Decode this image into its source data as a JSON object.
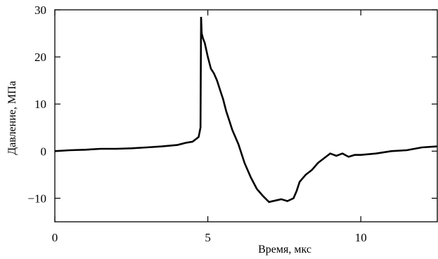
{
  "chart_data": {
    "type": "line",
    "title": "",
    "xlabel": "Время, мкс",
    "ylabel": "Давление, МПа",
    "xlim": [
      0,
      12.5
    ],
    "ylim": [
      -15,
      30
    ],
    "xticks": [
      0,
      5,
      10
    ],
    "yticks": [
      -10,
      0,
      10,
      20,
      30
    ],
    "xtick_labels": [
      "0",
      "5",
      "10"
    ],
    "ytick_labels": [
      "−10",
      "0",
      "10",
      "20",
      "30"
    ],
    "grid": false,
    "legend": "none",
    "line_color": "#000000",
    "series": [
      {
        "x": [
          0.0,
          0.5,
          1.0,
          1.5,
          2.0,
          2.5,
          3.0,
          3.5,
          4.0,
          4.3,
          4.5,
          4.6,
          4.7,
          4.76,
          4.78,
          4.8,
          4.84,
          4.9,
          5.0,
          5.1,
          5.2,
          5.3,
          5.4,
          5.5,
          5.6,
          5.7,
          5.8,
          6.0,
          6.2,
          6.4,
          6.6,
          6.8,
          7.0,
          7.2,
          7.4,
          7.6,
          7.8,
          7.9,
          8.0,
          8.2,
          8.4,
          8.6,
          8.8,
          9.0,
          9.2,
          9.4,
          9.6,
          9.8,
          10.0,
          10.5,
          11.0,
          11.5,
          12.0,
          12.5
        ],
        "y": [
          0,
          0.2,
          0.3,
          0.5,
          0.5,
          0.6,
          0.8,
          1.0,
          1.3,
          1.8,
          2.0,
          2.5,
          3.0,
          5.0,
          28.5,
          25.0,
          24.0,
          23.0,
          20.0,
          17.5,
          16.5,
          15.0,
          13.0,
          11.0,
          8.5,
          6.5,
          4.5,
          1.5,
          -2.5,
          -5.5,
          -8.0,
          -9.5,
          -10.8,
          -10.5,
          -10.2,
          -10.6,
          -10.0,
          -8.5,
          -6.5,
          -5.0,
          -4.0,
          -2.5,
          -1.5,
          -0.5,
          -1.0,
          -0.5,
          -1.2,
          -0.8,
          -0.8,
          -0.5,
          0.0,
          0.2,
          0.8,
          1.0
        ]
      }
    ]
  }
}
